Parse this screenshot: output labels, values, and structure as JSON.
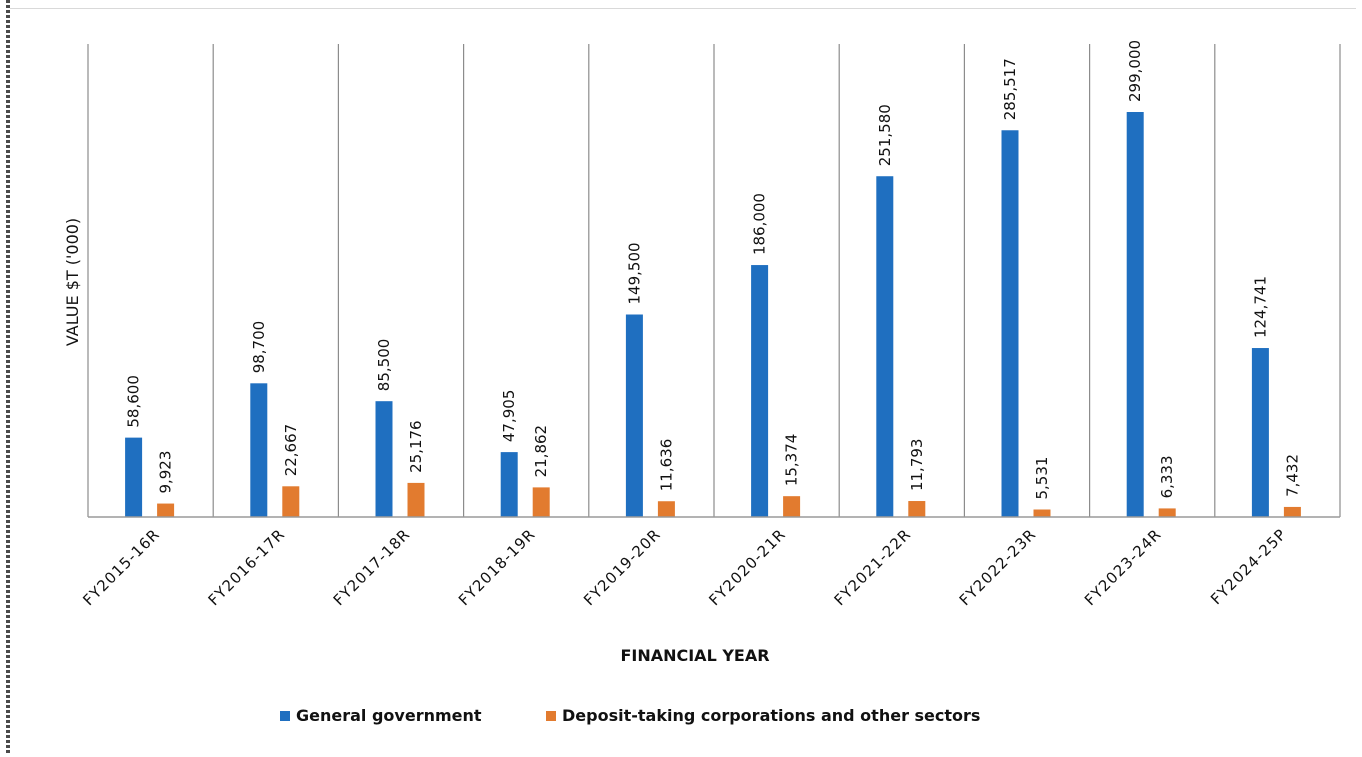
{
  "chart_data": {
    "type": "bar",
    "title": "",
    "xlabel": "FINANCIAL YEAR",
    "ylabel": "VALUE $T ('000)",
    "ylim": [
      0,
      320000
    ],
    "grid": "vertical category separators",
    "legend_position": "bottom",
    "categories": [
      "FY2015-16R",
      "FY2016-17R",
      "FY2017-18R",
      "FY2018-19R",
      "FY2019-20R",
      "FY2020-21R",
      "FY2021-22R",
      "FY2022-23R",
      "FY2023-24R",
      "FY2024-25P"
    ],
    "series": [
      {
        "name": "General government",
        "color": "#1f6fc0",
        "values": [
          58600,
          98700,
          85500,
          47905,
          149500,
          186000,
          251580,
          285517,
          299000,
          124741
        ],
        "labels": [
          "58,600",
          "98,700",
          "85,500",
          "47,905",
          "149,500",
          "186,000",
          "251,580",
          "285,517",
          "299,000",
          "124,741"
        ]
      },
      {
        "name": "Deposit-taking corporations and other sectors",
        "color": "#e27b2f",
        "values": [
          9923,
          22667,
          25176,
          21862,
          11636,
          15374,
          11793,
          5531,
          6333,
          7432
        ],
        "labels": [
          "9,923",
          "22,667",
          "25,176",
          "21,862",
          "11,636",
          "15,374",
          "11,793",
          "5,531",
          "6,333",
          "7,432"
        ]
      }
    ]
  }
}
